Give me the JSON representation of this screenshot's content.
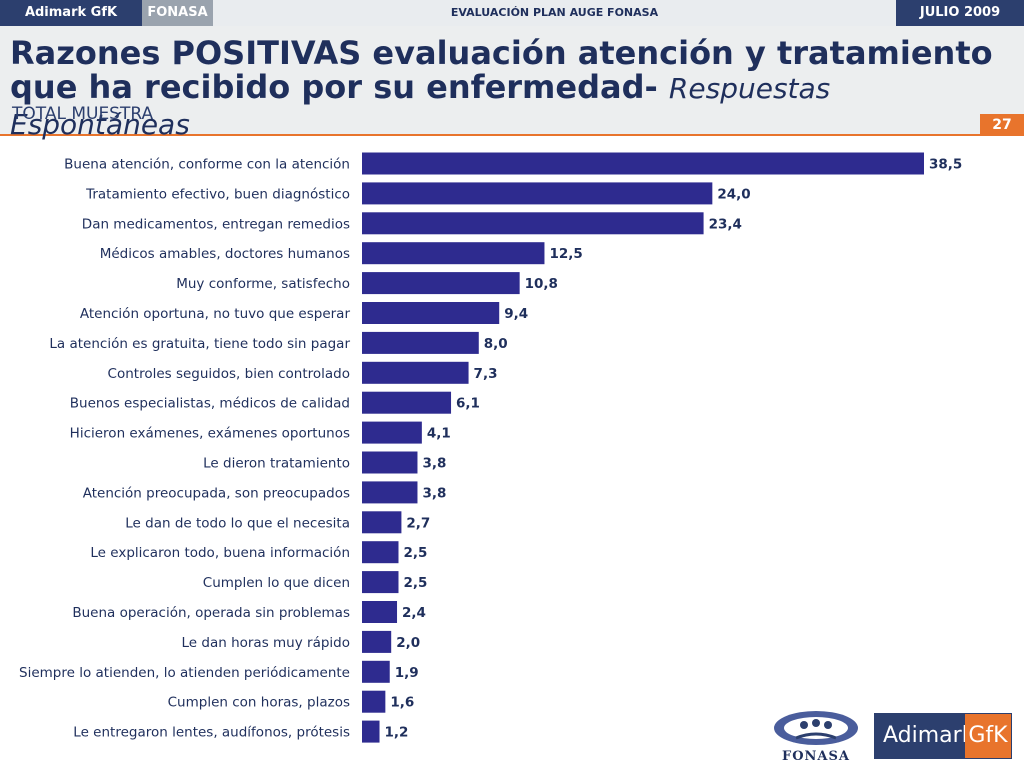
{
  "header": {
    "brand": "Adimark GfK",
    "client": "FONASA",
    "study": "EVALUACIÓN PLAN AUGE FONASA",
    "date": "JULIO 2009"
  },
  "slide": {
    "title_bold": "Razones POSITIVAS evaluación atención y tratamiento que ha recibido por su enfermedad-",
    "title_italic": "Respuestas Espontáneas",
    "subtitle": "TOTAL MUESTRA",
    "page_number": "27"
  },
  "logos": {
    "fonasa": "FONASA",
    "adimark": "Adimark",
    "gfk": "GfK"
  },
  "colors": {
    "bar": "#2e2b8f",
    "navy": "#2c3f6e",
    "accent": "#e8742c"
  },
  "chart_data": {
    "type": "bar",
    "orientation": "horizontal",
    "categories": [
      "Buena atención, conforme con la atención",
      "Tratamiento efectivo, buen diagnóstico",
      "Dan medicamentos, entregan remedios",
      "Médicos amables, doctores humanos",
      "Muy conforme, satisfecho",
      "Atención oportuna, no tuvo que esperar",
      "La atención es gratuita, tiene todo sin pagar",
      "Controles seguidos, bien controlado",
      "Buenos especialistas, médicos de calidad",
      "Hicieron exámenes, exámenes oportunos",
      "Le dieron tratamiento",
      "Atención preocupada, son preocupados",
      "Le dan de todo lo que el necesita",
      "Le explicaron todo, buena información",
      "Cumplen lo que dicen",
      "Buena operación, operada sin problemas",
      "Le dan horas muy rápido",
      "Siempre lo atienden, lo atienden periódicamente",
      "Cumplen con horas, plazos",
      "Le entregaron lentes, audífonos, prótesis"
    ],
    "values": [
      38.5,
      24.0,
      23.4,
      12.5,
      10.8,
      9.4,
      8.0,
      7.3,
      6.1,
      4.1,
      3.8,
      3.8,
      2.7,
      2.5,
      2.5,
      2.4,
      2.0,
      1.9,
      1.6,
      1.2
    ],
    "value_labels": [
      "38,5",
      "24,0",
      "23,4",
      "12,5",
      "10,8",
      "9,4",
      "8,0",
      "7,3",
      "6,1",
      "4,1",
      "3,8",
      "3,8",
      "2,7",
      "2,5",
      "2,5",
      "2,4",
      "2,0",
      "1,9",
      "1,6",
      "1,2"
    ],
    "xlim": [
      0,
      38.5
    ],
    "title": "",
    "xlabel": "",
    "ylabel": "",
    "grid": false,
    "legend": "none"
  }
}
